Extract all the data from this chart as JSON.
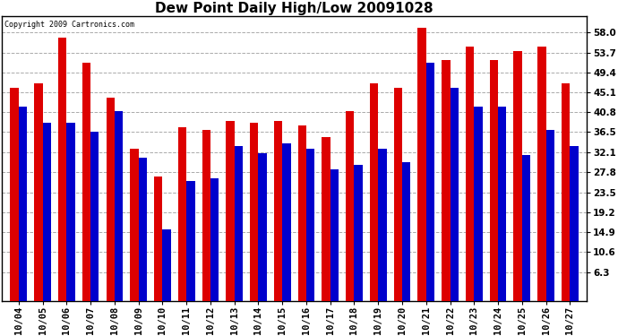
{
  "title": "Dew Point Daily High/Low 20091028",
  "copyright": "Copyright 2009 Cartronics.com",
  "categories": [
    "10/04",
    "10/05",
    "10/06",
    "10/07",
    "10/08",
    "10/09",
    "10/10",
    "10/11",
    "10/12",
    "10/13",
    "10/14",
    "10/15",
    "10/16",
    "10/17",
    "10/18",
    "10/19",
    "10/20",
    "10/21",
    "10/22",
    "10/23",
    "10/24",
    "10/25",
    "10/26",
    "10/27"
  ],
  "high_values": [
    46.0,
    47.0,
    57.0,
    51.5,
    44.0,
    33.0,
    27.0,
    37.5,
    37.0,
    39.0,
    38.5,
    39.0,
    38.0,
    35.5,
    41.0,
    47.0,
    46.0,
    59.0,
    52.0,
    55.0,
    52.0,
    54.0,
    55.0,
    47.0
  ],
  "low_values": [
    42.0,
    38.5,
    38.5,
    36.5,
    41.0,
    31.0,
    15.5,
    26.0,
    26.5,
    33.5,
    32.0,
    34.0,
    33.0,
    28.5,
    29.5,
    33.0,
    30.0,
    51.5,
    46.0,
    42.0,
    42.0,
    31.5,
    37.0,
    33.5
  ],
  "high_color": "#dd0000",
  "low_color": "#0000cc",
  "yticks": [
    6.3,
    10.6,
    14.9,
    19.2,
    23.5,
    27.8,
    32.1,
    36.5,
    40.8,
    45.1,
    49.4,
    53.7,
    58.0
  ],
  "ylim": [
    0,
    61.5
  ],
  "background_color": "#ffffff",
  "grid_color": "#aaaaaa",
  "title_fontsize": 11,
  "tick_fontsize": 7.5,
  "copyright_fontsize": 6
}
